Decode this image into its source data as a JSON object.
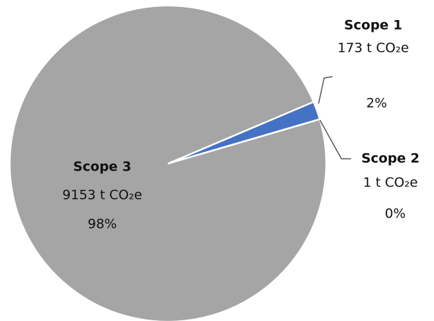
{
  "chart_data": {
    "type": "pie",
    "categories": [
      "Scope 1",
      "Scope 2",
      "Scope 3"
    ],
    "values": [
      173,
      1,
      9153
    ],
    "value_labels": [
      "173 t CO₂e",
      "1 t CO₂e",
      "9153 t CO₂e"
    ],
    "percents": [
      2,
      0,
      98
    ],
    "percent_labels": [
      "2%",
      "0%",
      "98%"
    ],
    "colors": [
      "#4472c4",
      "#ed7d31",
      "#a5a5a5"
    ]
  }
}
